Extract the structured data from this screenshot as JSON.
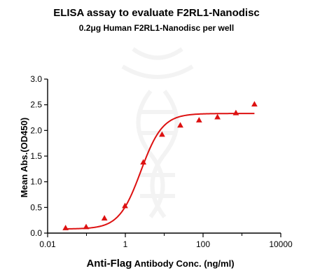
{
  "chart_data": {
    "type": "scatter",
    "title": "ELISA assay to evaluate F2RL1-Nanodisc",
    "subtitle": "0.2μg Human F2RL1-Nanodisc per well",
    "xlabel_main": "Anti-Flag",
    "xlabel_rest": " Antibody Conc. (ng/ml)",
    "ylabel": "Mean Abs.(OD450)",
    "xscale": "log",
    "xlim": [
      0.01,
      10000
    ],
    "ylim": [
      0,
      3.0
    ],
    "x_ticks": [
      0.01,
      1,
      100,
      10000
    ],
    "x_tick_labels": [
      "0.01",
      "1",
      "100",
      "10000"
    ],
    "y_ticks": [
      0,
      0.5,
      1.0,
      1.5,
      2.0,
      2.5,
      3.0
    ],
    "y_tick_labels": [
      "0.0",
      "0.5",
      "1.0",
      "1.5",
      "2.0",
      "2.5",
      "3.0"
    ],
    "grid": false,
    "color": "#dd1111",
    "series": [
      {
        "marker": "triangle",
        "x": [
          0.029,
          0.098,
          0.29,
          0.98,
          2.9,
          8.8,
          26,
          79,
          235,
          700,
          2100
        ],
        "y": [
          0.1,
          0.12,
          0.29,
          0.53,
          1.38,
          1.92,
          2.1,
          2.2,
          2.26,
          2.34,
          2.51
        ]
      }
    ],
    "fit_curve": {
      "model": "4PL",
      "bottom": 0.08,
      "top": 2.33,
      "ec50": 2.5,
      "hill": 1.55
    }
  }
}
